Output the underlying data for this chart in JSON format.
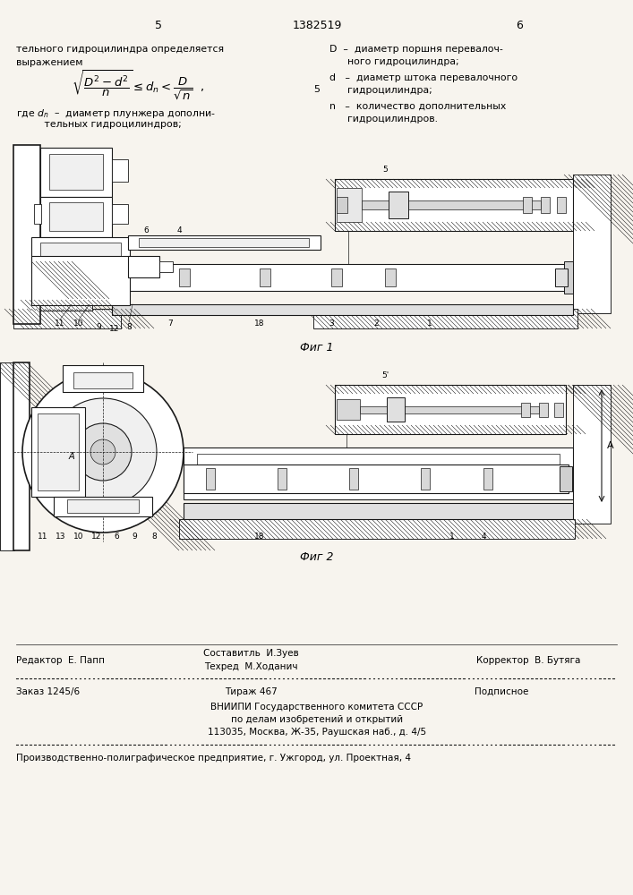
{
  "bg_color": "#f0ede6",
  "paper_color": "#f7f4ee",
  "line_color": "#1a1a1a",
  "page_number_left": "5",
  "page_number_center": "1382519",
  "page_number_right": "6",
  "footer_editor": "Редактор  Е. Папп",
  "footer_composer_line1": "Составитль  И.Зуев",
  "footer_composer_line2": "Техред  М.Ходанич",
  "footer_corrector": "Корректор  В. Бутяга",
  "footer_order": "Заказ 1245/6",
  "footer_tirazh": "Тираж 467",
  "footer_podpisnoe": "Подписное",
  "footer_vniipi1": "ВНИИПИ Государственного комитета СССР",
  "footer_vniipi2": "по делам изобретений и открытий",
  "footer_vniipi3": "113035, Москва, Ж-35, Раушская наб., д. 4/5",
  "footer_production": "Производственно-полиграфическое предприятие, г. Ужгород, ул. Проектная, 4"
}
